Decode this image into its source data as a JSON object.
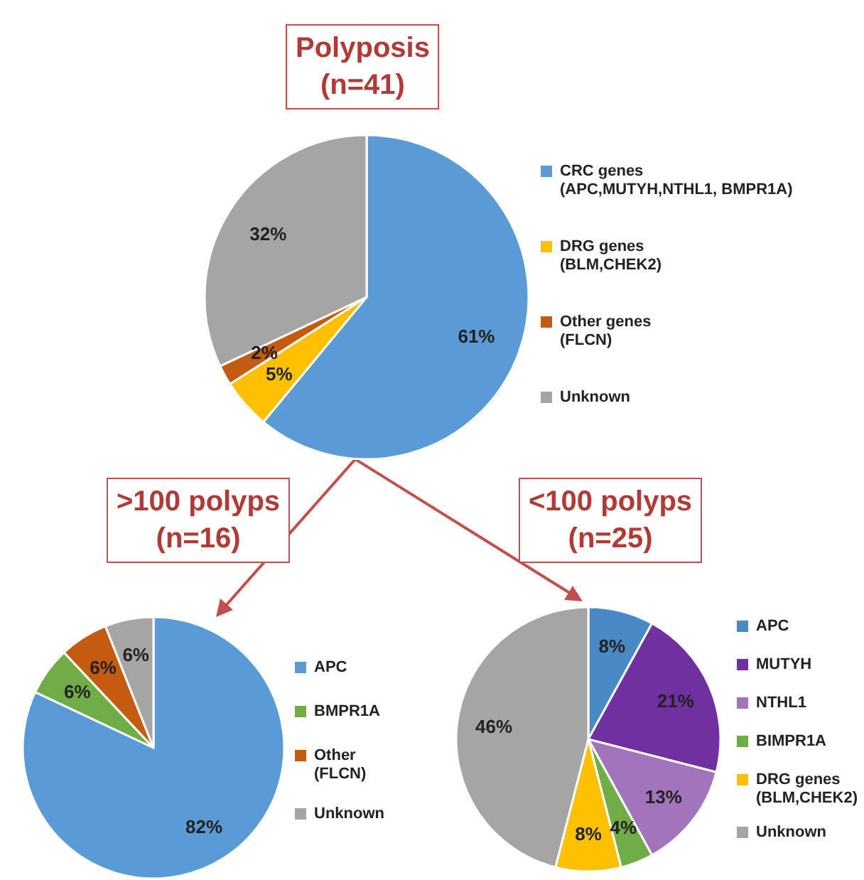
{
  "chart_data": [
    {
      "type": "pie",
      "title": "Polyposis",
      "subtitle": "(n=41)",
      "categories": [
        "CRC genes (APC,MUTYH,NTHL1, BMPR1A)",
        "DRG genes (BLM,CHEK2)",
        "Other genes (FLCN)",
        "Unknown"
      ],
      "values": [
        61,
        5,
        2,
        32
      ],
      "colors": [
        "#5b9bd5",
        "#ffc000",
        "#c55a11",
        "#a5a5a5"
      ],
      "value_labels": [
        "61%",
        "5%",
        "2%",
        "32%"
      ],
      "legend": "right"
    },
    {
      "type": "pie",
      "title": ">100 polyps",
      "subtitle": "(n=16)",
      "categories": [
        "APC",
        "BMPR1A",
        "Other (FLCN)",
        "Unknown"
      ],
      "values": [
        82,
        6,
        6,
        6
      ],
      "colors": [
        "#5b9bd5",
        "#70ad47",
        "#c55a11",
        "#a5a5a5"
      ],
      "value_labels": [
        "82%",
        "6%",
        "6%",
        "6%"
      ],
      "legend": "right"
    },
    {
      "type": "pie",
      "title": "<100 polyps",
      "subtitle": "(n=25)",
      "categories": [
        "APC",
        "MUTYH",
        "NTHL1",
        "BIMPR1A",
        "DRG genes (BLM,CHEK2)",
        "Unknown"
      ],
      "values": [
        8,
        21,
        13,
        4,
        8,
        46
      ],
      "colors": [
        "#4a8ac4",
        "#7030a0",
        "#a274bc",
        "#70ad47",
        "#ffc000",
        "#a5a5a5"
      ],
      "value_labels": [
        "8%",
        "21%",
        "13%",
        "4%",
        "8%",
        "46%"
      ],
      "legend": "right"
    }
  ]
}
